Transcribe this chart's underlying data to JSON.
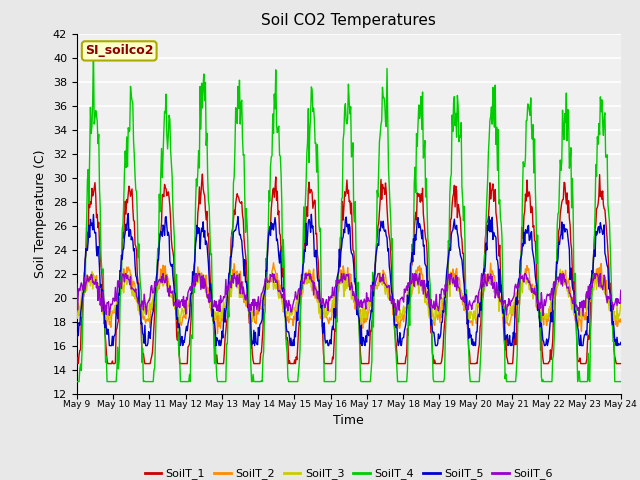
{
  "title": "Soil CO2 Temperatures",
  "xlabel": "Time",
  "ylabel": "Soil Temperature (C)",
  "ylim": [
    12,
    42
  ],
  "yticks": [
    12,
    14,
    16,
    18,
    20,
    22,
    24,
    26,
    28,
    30,
    32,
    34,
    36,
    38,
    40,
    42
  ],
  "start_day": 9,
  "end_day": 24,
  "annotation_text": "SI_soilco2",
  "annotation_color": "#8B0000",
  "annotation_bg": "#FFFFCC",
  "annotation_border": "#AAAA00",
  "series_colors": {
    "SoilT_1": "#CC0000",
    "SoilT_2": "#FF8C00",
    "SoilT_3": "#CCCC00",
    "SoilT_4": "#00CC00",
    "SoilT_5": "#0000CC",
    "SoilT_6": "#9900CC"
  },
  "legend_labels": [
    "SoilT_1",
    "SoilT_2",
    "SoilT_3",
    "SoilT_4",
    "SoilT_5",
    "SoilT_6"
  ],
  "bg_color": "#E8E8E8",
  "plot_bg_color": "#F0F0F0",
  "grid_color": "#FFFFFF",
  "num_points": 720,
  "line_width": 1.0
}
